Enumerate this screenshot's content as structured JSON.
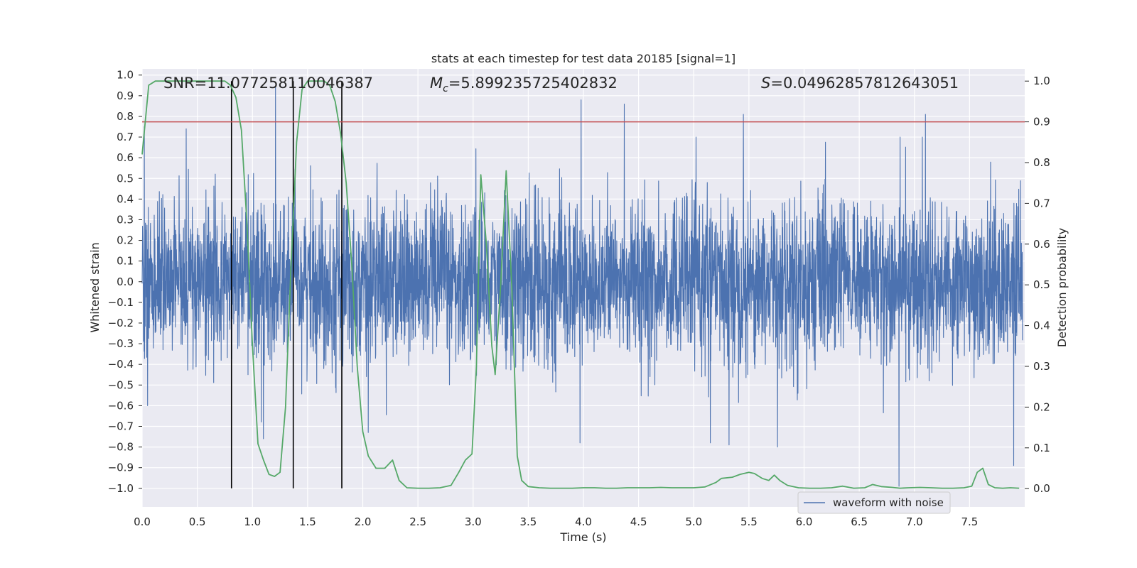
{
  "chart_data": {
    "type": "line",
    "title": "stats at each timestep for test data 20185 [signal=1]",
    "xlabel": "Time (s)",
    "ylabel_left": "Whitened strain",
    "ylabel_right": "Detection probability",
    "xlim": [
      0.0,
      8.0
    ],
    "ylim_left": [
      -1.09,
      1.03
    ],
    "ylim_right": [
      -0.045,
      1.03
    ],
    "x_ticks": [
      "0.0",
      "0.5",
      "1.0",
      "1.5",
      "2.0",
      "2.5",
      "3.0",
      "3.5",
      "4.0",
      "4.5",
      "5.0",
      "5.5",
      "6.0",
      "6.5",
      "7.0",
      "7.5"
    ],
    "y_left_ticks": [
      "1.0",
      "0.9",
      "0.8",
      "0.7",
      "0.6",
      "0.5",
      "0.4",
      "0.3",
      "0.2",
      "0.1",
      "0.0",
      "−0.1",
      "−0.2",
      "−0.3",
      "−0.4",
      "−0.5",
      "−0.6",
      "−0.7",
      "−0.8",
      "−0.9",
      "−1.0"
    ],
    "y_right_ticks": [
      "1.0",
      "0.9",
      "0.8",
      "0.7",
      "0.6",
      "0.5",
      "0.4",
      "0.3",
      "0.2",
      "0.1",
      "0.0"
    ],
    "annotations": {
      "snr": "SNR=11.077258110046387",
      "mc_symbol": "M",
      "mc_sub": "c",
      "mc_value": "=5.899235725402832",
      "s_symbol": "S",
      "s_value": "=0.04962857812643051"
    },
    "threshold": {
      "value": 0.9,
      "axis": "right",
      "color": "#c44e52"
    },
    "vertical_markers": [
      0.81,
      1.37,
      1.81
    ],
    "legend": {
      "label": "waveform with noise",
      "location": "lower-right"
    },
    "series": [
      {
        "name": "waveform with noise",
        "axis": "left",
        "color": "#4c72b0",
        "kind": "noise",
        "typical_amplitude": 0.3,
        "notable_peaks": [
          {
            "x": 0.02,
            "y": 0.75
          },
          {
            "x": 0.4,
            "y": 0.74
          },
          {
            "x": 1.21,
            "y": 0.94
          },
          {
            "x": 3.98,
            "y": 0.88
          },
          {
            "x": 4.37,
            "y": 0.86
          },
          {
            "x": 5.45,
            "y": 0.81
          },
          {
            "x": 6.87,
            "y": 0.7
          },
          {
            "x": 7.1,
            "y": 0.81
          },
          {
            "x": 0.05,
            "y": -0.6
          },
          {
            "x": 1.1,
            "y": -0.76
          },
          {
            "x": 2.05,
            "y": -0.73
          },
          {
            "x": 3.97,
            "y": -0.78
          },
          {
            "x": 5.15,
            "y": -0.78
          },
          {
            "x": 5.32,
            "y": -0.79
          },
          {
            "x": 5.76,
            "y": -0.8
          },
          {
            "x": 6.86,
            "y": -0.99
          },
          {
            "x": 7.9,
            "y": -0.89
          }
        ]
      },
      {
        "name": "detection probability",
        "axis": "right",
        "color": "#55a868",
        "x": [
          0.0,
          0.06,
          0.12,
          0.2,
          0.3,
          0.4,
          0.5,
          0.6,
          0.7,
          0.75,
          0.8,
          0.85,
          0.9,
          0.95,
          1.0,
          1.05,
          1.1,
          1.15,
          1.2,
          1.25,
          1.3,
          1.35,
          1.4,
          1.45,
          1.5,
          1.55,
          1.6,
          1.65,
          1.7,
          1.75,
          1.8,
          1.85,
          1.9,
          1.95,
          2.0,
          2.05,
          2.12,
          2.2,
          2.27,
          2.33,
          2.4,
          2.5,
          2.6,
          2.7,
          2.8,
          2.87,
          2.93,
          2.99,
          3.03,
          3.07,
          3.12,
          3.17,
          3.2,
          3.25,
          3.3,
          3.35,
          3.4,
          3.44,
          3.5,
          3.6,
          3.7,
          3.8,
          3.9,
          4.0,
          4.1,
          4.2,
          4.3,
          4.4,
          4.5,
          4.6,
          4.7,
          4.8,
          4.9,
          5.0,
          5.1,
          5.2,
          5.25,
          5.35,
          5.42,
          5.5,
          5.55,
          5.62,
          5.68,
          5.73,
          5.78,
          5.85,
          5.95,
          6.05,
          6.15,
          6.25,
          6.35,
          6.45,
          6.55,
          6.62,
          6.7,
          6.8,
          6.87,
          6.95,
          7.05,
          7.15,
          7.25,
          7.35,
          7.45,
          7.52,
          7.57,
          7.62,
          7.67,
          7.73,
          7.8,
          7.87,
          7.95
        ],
        "y": [
          0.82,
          0.99,
          1.0,
          1.0,
          1.0,
          1.0,
          1.0,
          1.0,
          1.0,
          1.0,
          0.99,
          0.96,
          0.88,
          0.65,
          0.35,
          0.11,
          0.07,
          0.035,
          0.03,
          0.04,
          0.2,
          0.55,
          0.85,
          0.98,
          1.0,
          1.0,
          1.0,
          1.0,
          0.99,
          0.95,
          0.87,
          0.75,
          0.55,
          0.3,
          0.14,
          0.08,
          0.05,
          0.05,
          0.07,
          0.02,
          0.002,
          0.001,
          0.001,
          0.002,
          0.008,
          0.04,
          0.07,
          0.085,
          0.3,
          0.77,
          0.6,
          0.35,
          0.28,
          0.5,
          0.78,
          0.5,
          0.08,
          0.02,
          0.005,
          0.002,
          0.001,
          0.001,
          0.001,
          0.002,
          0.002,
          0.001,
          0.001,
          0.002,
          0.002,
          0.002,
          0.003,
          0.002,
          0.002,
          0.002,
          0.004,
          0.015,
          0.025,
          0.028,
          0.035,
          0.04,
          0.037,
          0.025,
          0.02,
          0.033,
          0.02,
          0.008,
          0.002,
          0.001,
          0.001,
          0.002,
          0.006,
          0.001,
          0.002,
          0.01,
          0.005,
          0.003,
          0.001,
          0.002,
          0.003,
          0.002,
          0.001,
          0.001,
          0.002,
          0.006,
          0.04,
          0.05,
          0.01,
          0.002,
          0.001,
          0.002,
          0.001
        ]
      }
    ]
  }
}
